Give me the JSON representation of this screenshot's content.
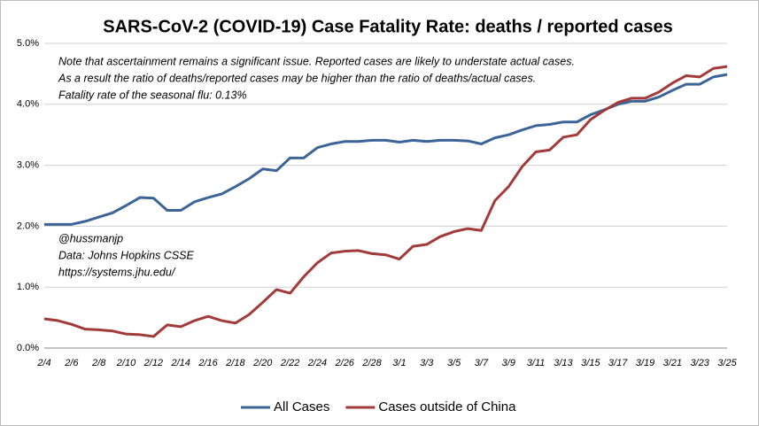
{
  "chart_data": {
    "type": "line",
    "title": "SARS-CoV-2 (COVID-19)  Case Fatality Rate: deaths / reported cases",
    "annotations": [
      "Note that ascertainment remains a significant issue. Reported cases are likely to understate actual cases.",
      "As a result the ratio of deaths/reported  cases may be higher than the ratio of deaths/actual cases.",
      "Fatality rate of the seasonal flu: 0.13%"
    ],
    "source": [
      "@hussmanjp",
      "Data: Johns Hopkins CSSE",
      "https://systems.jhu.edu/"
    ],
    "categories": [
      "2/4",
      null,
      "2/6",
      null,
      "2/8",
      null,
      "2/10",
      null,
      "2/12",
      null,
      "2/14",
      null,
      "2/16",
      null,
      "2/18",
      null,
      "2/20",
      null,
      "2/22",
      null,
      "2/24",
      null,
      "2/26",
      null,
      "2/28",
      null,
      "3/1",
      null,
      "3/3",
      null,
      "3/5",
      null,
      "3/7",
      null,
      "3/9",
      null,
      "3/11",
      null,
      "3/13",
      null,
      "3/15",
      null,
      "3/17",
      null,
      "3/19",
      null,
      "3/21",
      null,
      "3/23",
      null,
      "3/25"
    ],
    "series": [
      {
        "name": "All Cases",
        "color": "#3c6496",
        "values": [
          2.03,
          2.03,
          2.03,
          2.08,
          2.15,
          2.22,
          2.34,
          2.47,
          2.46,
          2.26,
          2.26,
          2.4,
          2.47,
          2.53,
          2.65,
          2.78,
          2.94,
          2.91,
          3.12,
          3.12,
          3.29,
          3.35,
          3.39,
          3.39,
          3.41,
          3.41,
          3.38,
          3.41,
          3.39,
          3.41,
          3.41,
          3.4,
          3.35,
          3.45,
          3.5,
          3.58,
          3.65,
          3.67,
          3.71,
          3.71,
          3.83,
          3.91,
          4.0,
          4.05,
          4.05,
          4.12,
          4.23,
          4.33,
          4.33,
          4.45,
          4.49
        ]
      },
      {
        "name": "Cases outside of China",
        "color": "#a33a3a",
        "values": [
          0.48,
          0.45,
          0.39,
          0.31,
          0.3,
          0.28,
          0.23,
          0.22,
          0.19,
          0.38,
          0.35,
          0.45,
          0.52,
          0.45,
          0.41,
          0.55,
          0.75,
          0.96,
          0.9,
          1.17,
          1.4,
          1.56,
          1.59,
          1.6,
          1.55,
          1.53,
          1.46,
          1.67,
          1.7,
          1.83,
          1.91,
          1.96,
          1.93,
          2.42,
          2.65,
          2.98,
          3.22,
          3.25,
          3.46,
          3.5,
          3.75,
          3.9,
          4.03,
          4.1,
          4.1,
          4.2,
          4.35,
          4.47,
          4.45,
          4.59,
          4.62
        ]
      }
    ],
    "ylim": [
      0,
      5
    ],
    "yticks": [
      {
        "value": 0,
        "label": "0.0%"
      },
      {
        "value": 1,
        "label": "1.0%"
      },
      {
        "value": 2,
        "label": "2.0%"
      },
      {
        "value": 3,
        "label": "3.0%"
      },
      {
        "value": 4,
        "label": "4.0%"
      },
      {
        "value": 5,
        "label": "5.0%"
      }
    ],
    "grid": true
  }
}
